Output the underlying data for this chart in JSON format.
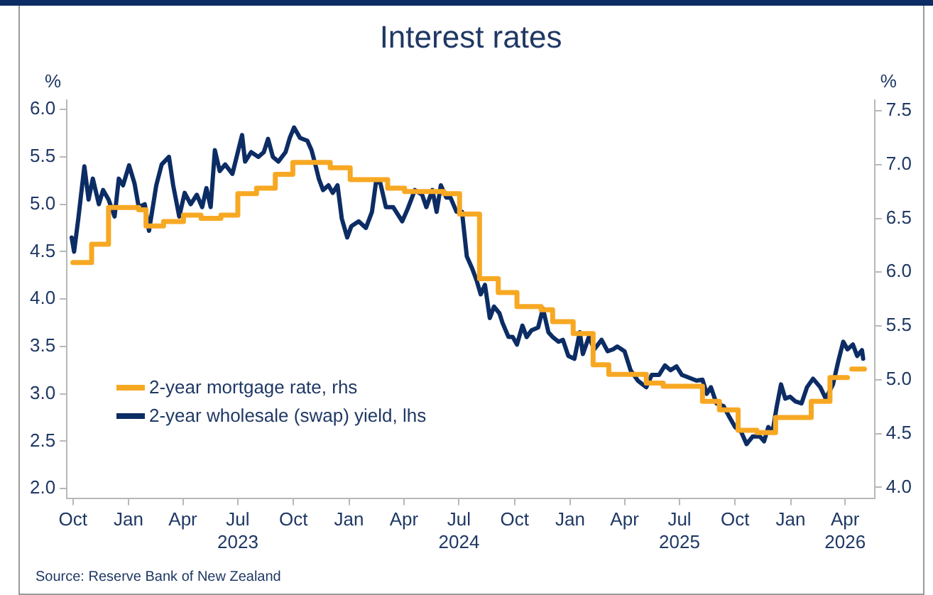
{
  "chart_data": {
    "type": "line",
    "title": "Interest rates",
    "ylabel": "%",
    "y2label": "%",
    "annotations": [
      "Source: Reserve Bank of New Zealand"
    ],
    "legend": "bottom left",
    "xlim": [
      "2022-09-21",
      "2026-05-20"
    ],
    "xticks": [
      {
        "value": "2022-10-01",
        "label": "Oct"
      },
      {
        "value": "2023-01-01",
        "label": "Jan"
      },
      {
        "value": "2023-04-01",
        "label": "Apr"
      },
      {
        "value": "2023-07-01",
        "label": "Jul\n2023"
      },
      {
        "value": "2023-10-01",
        "label": "Oct"
      },
      {
        "value": "2024-01-01",
        "label": "Jan"
      },
      {
        "value": "2024-04-01",
        "label": "Apr"
      },
      {
        "value": "2024-07-01",
        "label": "Jul\n2024"
      },
      {
        "value": "2024-10-01",
        "label": "Oct"
      },
      {
        "value": "2025-01-01",
        "label": "Jan"
      },
      {
        "value": "2025-04-01",
        "label": "Apr"
      },
      {
        "value": "2025-07-01",
        "label": "Jul\n2025"
      },
      {
        "value": "2025-10-01",
        "label": "Oct"
      },
      {
        "value": "2026-01-01",
        "label": "Jan"
      },
      {
        "value": "2026-04-01",
        "label": "Apr\n2026"
      }
    ],
    "ylim": [
      1.9,
      6.1
    ],
    "yticks": [
      {
        "value": 2,
        "label": "2.0"
      },
      {
        "value": 2.5,
        "label": "2.5"
      },
      {
        "value": 3,
        "label": "3.0"
      },
      {
        "value": 3.5,
        "label": "3.5"
      },
      {
        "value": 4,
        "label": "4.0"
      },
      {
        "value": 4.5,
        "label": "4.5"
      },
      {
        "value": 5,
        "label": "5.0"
      },
      {
        "value": 5.5,
        "label": "5.5"
      },
      {
        "value": 6,
        "label": "6.0"
      }
    ],
    "y2lim": [
      3.9,
      7.6
    ],
    "y2ticks": [
      {
        "value": 4,
        "label": "4.0"
      },
      {
        "value": 4.5,
        "label": "4.5"
      },
      {
        "value": 5,
        "label": "5.0"
      },
      {
        "value": 5.5,
        "label": "5.5"
      },
      {
        "value": 6,
        "label": "6.0"
      },
      {
        "value": 6.5,
        "label": "6.5"
      },
      {
        "value": 7,
        "label": "7.0"
      },
      {
        "value": 7.5,
        "label": "7.5"
      }
    ],
    "series": [
      {
        "name": "2-year mortgage rate, rhs",
        "type": "step",
        "axis": "y2",
        "color": "#f7a823",
        "x": [
          "2022-10-01",
          "2022-11-01",
          "2022-11-29",
          "2023-01-18",
          "2023-01-30",
          "2023-02-28",
          "2023-04-02",
          "2023-05-01",
          "2023-06-03",
          "2023-07-01",
          "2023-08-01",
          "2023-09-01",
          "2023-09-30",
          "2023-12-01",
          "2024-01-03",
          "2024-03-05",
          "2024-04-02",
          "2024-06-06",
          "2024-07-02",
          "2024-08-04",
          "2024-09-04",
          "2024-10-05",
          "2024-11-14",
          "2024-12-03",
          "2025-01-06",
          "2025-02-08",
          "2025-03-06",
          "2025-05-07",
          "2025-06-04",
          "2025-08-08",
          "2025-09-05",
          "2025-10-06",
          "2025-11-06",
          "2025-12-07",
          "2026-02-04",
          "2026-03-07",
          "2026-04-05",
          "2026-04-09",
          "2026-04-12",
          "2026-05-03"
        ],
        "values": [
          6.09,
          6.26,
          6.6,
          6.58,
          6.43,
          6.47,
          6.53,
          6.5,
          6.53,
          6.73,
          6.78,
          6.91,
          7.02,
          6.97,
          6.86,
          6.78,
          6.75,
          6.73,
          6.54,
          5.94,
          5.81,
          5.68,
          5.65,
          5.54,
          5.43,
          5.14,
          5.05,
          4.97,
          4.94,
          4.8,
          4.72,
          4.53,
          4.51,
          4.65,
          4.8,
          5.02,
          5.02,
          null,
          5.1,
          5.1
        ]
      },
      {
        "name": "2-year wholesale (swap) yield, lhs",
        "type": "line",
        "axis": "y",
        "color": "#0c2c64",
        "x": [
          "2022-09-29",
          "2022-10-03",
          "2022-10-10",
          "2022-10-20",
          "2022-10-27",
          "2022-11-03",
          "2022-11-13",
          "2022-11-20",
          "2022-11-29",
          "2022-12-09",
          "2022-12-16",
          "2022-12-23",
          "2023-01-02",
          "2023-01-11",
          "2023-01-18",
          "2023-01-28",
          "2023-02-04",
          "2023-02-16",
          "2023-02-25",
          "2023-03-09",
          "2023-03-16",
          "2023-03-26",
          "2023-04-04",
          "2023-04-14",
          "2023-04-24",
          "2023-05-03",
          "2023-05-10",
          "2023-05-17",
          "2023-05-24",
          "2023-06-01",
          "2023-06-10",
          "2023-06-22",
          "2023-06-29",
          "2023-07-08",
          "2023-07-13",
          "2023-07-23",
          "2023-08-04",
          "2023-08-13",
          "2023-08-20",
          "2023-08-28",
          "2023-09-06",
          "2023-09-18",
          "2023-09-25",
          "2023-10-02",
          "2023-10-12",
          "2023-10-24",
          "2023-10-31",
          "2023-11-07",
          "2023-11-12",
          "2023-11-19",
          "2023-11-28",
          "2023-12-05",
          "2023-12-13",
          "2023-12-20",
          "2023-12-29",
          "2024-01-05",
          "2024-01-17",
          "2024-01-29",
          "2024-02-08",
          "2024-02-15",
          "2024-02-22",
          "2024-03-02",
          "2024-03-14",
          "2024-03-29",
          "2024-04-07",
          "2024-04-19",
          "2024-05-01",
          "2024-05-08",
          "2024-05-18",
          "2024-05-25",
          "2024-06-01",
          "2024-06-10",
          "2024-06-17",
          "2024-06-27",
          "2024-07-06",
          "2024-07-14",
          "2024-07-23",
          "2024-07-30",
          "2024-08-06",
          "2024-08-13",
          "2024-08-21",
          "2024-08-28",
          "2024-09-06",
          "2024-09-11",
          "2024-09-21",
          "2024-09-28",
          "2024-10-05",
          "2024-10-14",
          "2024-10-21",
          "2024-10-29",
          "2024-11-09",
          "2024-11-17",
          "2024-11-26",
          "2024-12-03",
          "2024-12-13",
          "2024-12-20",
          "2024-12-29",
          "2025-01-08",
          "2025-01-17",
          "2025-01-22",
          "2025-02-01",
          "2025-02-10",
          "2025-02-22",
          "2025-03-04",
          "2025-03-13",
          "2025-03-20",
          "2025-04-01",
          "2025-04-11",
          "2025-04-23",
          "2025-05-07",
          "2025-05-16",
          "2025-05-28",
          "2025-06-07",
          "2025-06-16",
          "2025-06-26",
          "2025-07-05",
          "2025-07-17",
          "2025-07-29",
          "2025-08-08",
          "2025-08-15",
          "2025-08-22",
          "2025-08-31",
          "2025-09-12",
          "2025-09-22",
          "2025-10-01",
          "2025-10-11",
          "2025-10-20",
          "2025-10-30",
          "2025-11-11",
          "2025-11-18",
          "2025-11-25",
          "2025-12-02",
          "2025-12-09",
          "2025-12-16",
          "2025-12-23",
          "2025-12-31",
          "2026-01-09",
          "2026-01-19",
          "2026-01-28",
          "2026-02-07",
          "2026-02-19",
          "2026-02-28",
          "2026-03-12",
          "2026-03-21",
          "2026-03-29",
          "2026-04-05",
          "2026-04-14",
          "2026-04-21",
          "2026-04-29",
          "2026-05-01"
        ],
        "values": [
          4.65,
          4.5,
          4.85,
          5.4,
          5.05,
          5.27,
          5.0,
          5.15,
          5.05,
          4.87,
          5.27,
          5.2,
          5.41,
          5.22,
          4.97,
          5.0,
          4.72,
          5.2,
          5.42,
          5.5,
          5.2,
          4.87,
          5.12,
          5.0,
          5.1,
          4.97,
          5.17,
          4.97,
          5.57,
          5.35,
          5.42,
          5.32,
          5.5,
          5.73,
          5.45,
          5.55,
          5.5,
          5.55,
          5.69,
          5.5,
          5.45,
          5.55,
          5.7,
          5.81,
          5.7,
          5.67,
          5.57,
          5.4,
          5.27,
          5.15,
          5.2,
          5.12,
          5.2,
          4.85,
          4.65,
          4.77,
          4.82,
          4.75,
          4.92,
          5.25,
          5.22,
          4.97,
          4.97,
          4.82,
          4.95,
          5.15,
          5.1,
          4.97,
          5.15,
          4.92,
          5.2,
          5.07,
          5.07,
          4.92,
          4.92,
          4.45,
          4.32,
          4.2,
          4.05,
          4.15,
          3.8,
          3.92,
          3.85,
          3.75,
          3.6,
          3.6,
          3.52,
          3.72,
          3.6,
          3.67,
          3.7,
          3.9,
          3.65,
          3.6,
          3.55,
          3.57,
          3.4,
          3.37,
          3.65,
          3.42,
          3.6,
          3.47,
          3.57,
          3.45,
          3.47,
          3.5,
          3.45,
          3.25,
          3.14,
          3.07,
          3.2,
          3.2,
          3.3,
          3.25,
          3.29,
          3.2,
          3.17,
          3.14,
          3.15,
          3.0,
          3.07,
          2.9,
          2.87,
          2.75,
          2.65,
          2.6,
          2.47,
          2.55,
          2.55,
          2.5,
          2.65,
          2.6,
          2.87,
          3.1,
          2.95,
          2.97,
          2.92,
          2.9,
          3.07,
          3.16,
          3.07,
          2.95,
          3.1,
          3.35,
          3.55,
          3.47,
          3.52,
          3.4,
          3.46,
          3.37
        ]
      }
    ]
  }
}
